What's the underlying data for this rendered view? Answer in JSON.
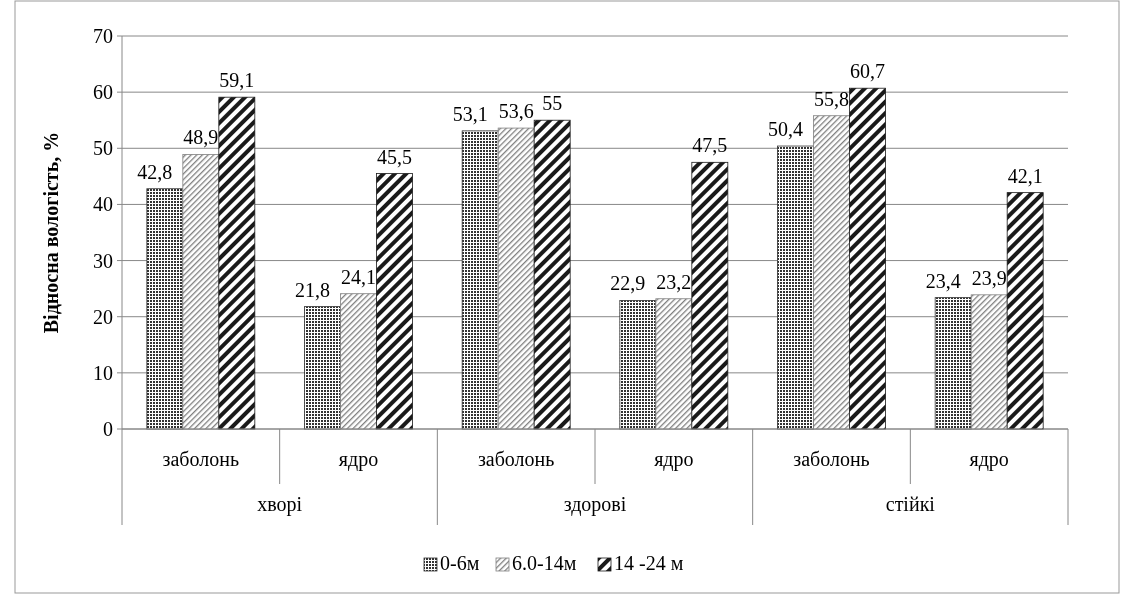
{
  "chart_data": {
    "type": "bar",
    "ylabel": "Відносна вологість, %",
    "categories": [
      "заболонь",
      "ядро",
      "заболонь",
      "ядро",
      "заболонь",
      "ядро"
    ],
    "annotations": [
      "хворі",
      "здорові",
      "стійкі"
    ],
    "series": [
      {
        "name": "0-6м",
        "color": "#333333",
        "values": [
          42.8,
          21.8,
          53.1,
          22.9,
          50.4,
          23.4
        ],
        "value_labels": [
          "42,8",
          "21,8",
          "53,1",
          "22,9",
          "50,4",
          "23,4"
        ]
      },
      {
        "name": "6.0-14м",
        "color": "#808080",
        "values": [
          48.9,
          24.1,
          53.6,
          23.2,
          55.8,
          23.9
        ],
        "value_labels": [
          "48,9",
          "24,1",
          "53,6",
          "23,2",
          "55,8",
          "23,9"
        ]
      },
      {
        "name": "14 -24 м",
        "color": "#1a1a1a",
        "values": [
          59.1,
          45.5,
          55,
          47.5,
          60.7,
          42.1
        ],
        "value_labels": [
          "59,1",
          "45,5",
          "55",
          "47,5",
          "60,7",
          "42,1"
        ]
      }
    ],
    "ylim": [
      0,
      70
    ],
    "yticks": [
      0,
      10,
      20,
      30,
      40,
      50,
      60,
      70
    ],
    "grid": "y",
    "legend": "bottom"
  }
}
